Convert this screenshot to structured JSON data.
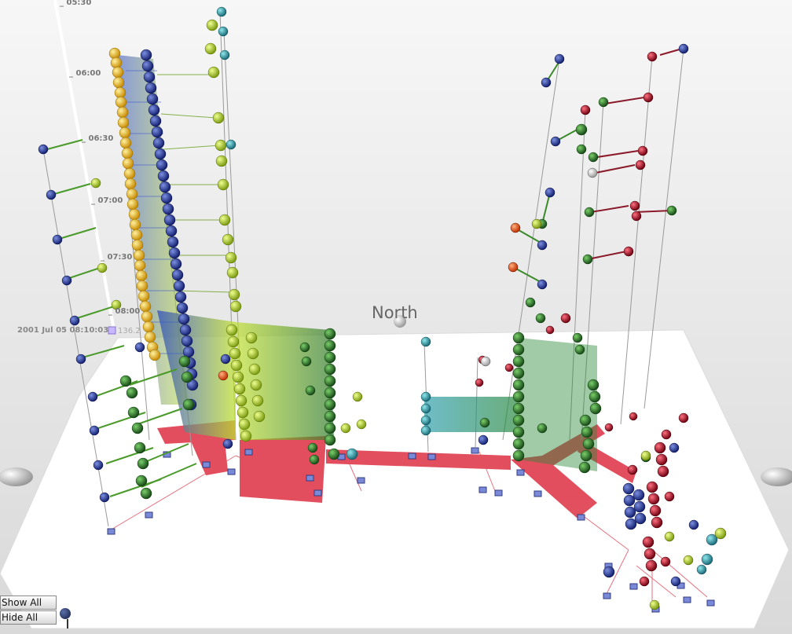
{
  "time_axis": {
    "ticks": [
      "_ 05:30",
      "_ 06:00",
      "_ 06:30",
      "_ 07:00",
      "_ 07:30",
      "_ 08:00"
    ],
    "current_time": "2001 Jul 05 08:10:03",
    "current_value": "136.2"
  },
  "compass": {
    "north_label": "North"
  },
  "controls": {
    "show_all": "Show All",
    "hide_all": "Hide All"
  },
  "colors": {
    "floor": "#ffffff",
    "route": "#e04050",
    "node_yellow": "#e8b020",
    "node_blue": "#2a3f9a",
    "node_lime": "#b8d830",
    "node_green": "#2f7a2f",
    "node_teal": "#2aa0a8",
    "node_red": "#b01828",
    "node_orange": "#ee6020"
  }
}
